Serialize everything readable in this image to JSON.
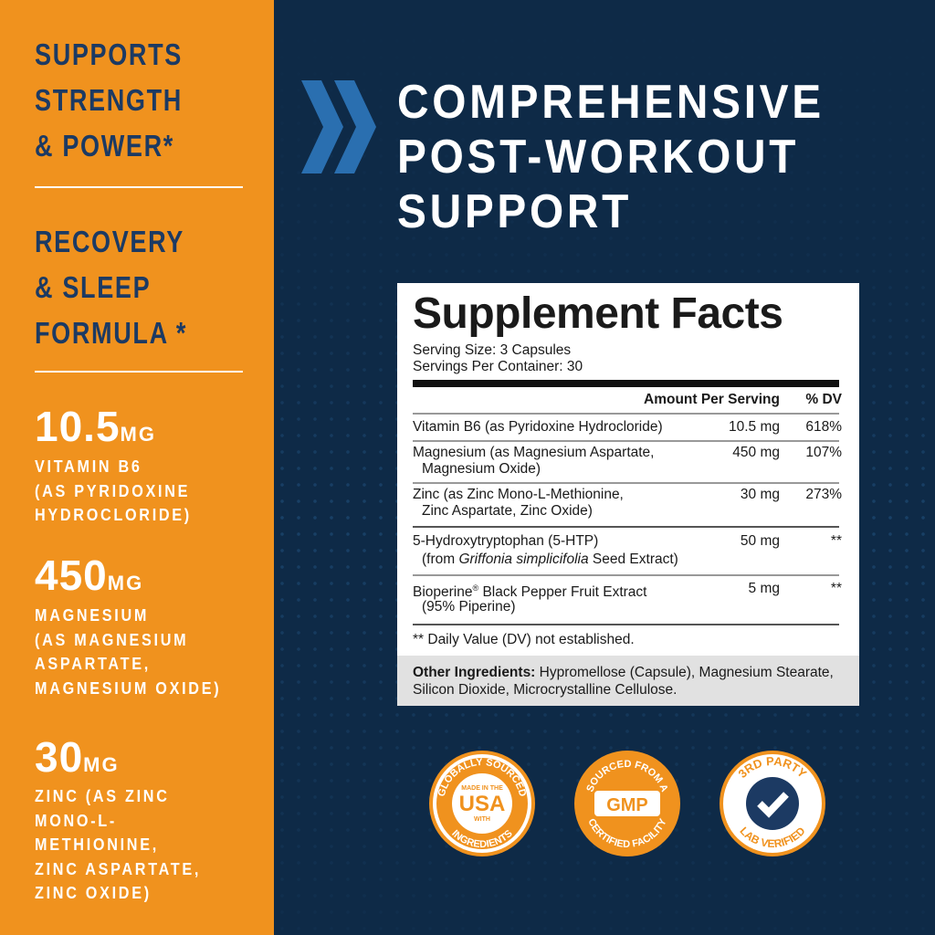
{
  "left": {
    "heading1": [
      "SUPPORTS",
      "STRENGTH",
      "& POWER*"
    ],
    "heading2": [
      "RECOVERY",
      "& SLEEP",
      "FORMULA *"
    ],
    "nutrients": [
      {
        "amount": "10.5",
        "unit": "MG",
        "desc": "VITAMIN B6\n(AS PYRIDOXINE\nHYDROCLORIDE)"
      },
      {
        "amount": "450",
        "unit": "MG",
        "desc": "MAGNESIUM\n(AS MAGNESIUM\nASPARTATE,\nMAGNESIUM OXIDE)"
      },
      {
        "amount": "30",
        "unit": "MG",
        "desc": "ZINC (AS ZINC\nMONO-L-\nMETHIONINE,\nZINC ASPARTATE,\nZINC OXIDE)"
      }
    ]
  },
  "title": [
    "COMPREHENSIVE",
    "POST-WORKOUT",
    "SUPPORT"
  ],
  "facts": {
    "heading": "Supplement Facts",
    "serving_size": "Serving Size: 3 Capsules",
    "servings_per_container": "Servings Per Container: 30",
    "col_amount": "Amount Per Serving",
    "col_dv": "% DV",
    "rows": [
      {
        "name": "Vitamin B6 (as Pyridoxine Hydrocloride)",
        "name2": "",
        "amount": "10.5 mg",
        "dv": "618%"
      },
      {
        "name": "Magnesium (as Magnesium Aspartate,",
        "name2": "Magnesium Oxide)",
        "amount": "450 mg",
        "dv": "107%"
      },
      {
        "name": "Zinc (as Zinc Mono-L-Methionine,",
        "name2": "Zinc Aspartate, Zinc Oxide)",
        "amount": "30 mg",
        "dv": "273%"
      },
      {
        "name": "5-Hydroxytryptophan (5-HTP)",
        "name2a": "(from ",
        "name2i": "Griffonia simplicifolia",
        "name2b": " Seed Extract)",
        "amount": "50 mg",
        "dv": "**"
      },
      {
        "name": "Bioperine",
        "reg": "®",
        "name_rest": " Black Pepper Fruit Extract",
        "name2": "(95% Piperine)",
        "amount": "5 mg",
        "dv": "**"
      }
    ],
    "footnote": "** Daily Value (DV) not established.",
    "other_label": "Other Ingredients:",
    "other_text": " Hypromellose (Capsule), Magnesium Stearate,  Silicon Dioxide,  Microcrystalline Cellulose."
  },
  "badges": [
    {
      "top": "GLOBALLY SOURCED",
      "line1": "MADE IN THE",
      "main": "USA",
      "line2": "WITH",
      "bottom": "INGREDIENTS"
    },
    {
      "top": "SOURCED FROM A",
      "main": "GMP",
      "bottom": "CERTIFIED FACILITY"
    },
    {
      "top": "3RD PARTY",
      "icon": "checkmark-icon",
      "bottom": "LAB VERIFIED"
    }
  ],
  "colors": {
    "orange": "#f0921e",
    "navy": "#0e2a47",
    "accent_blue": "#2a6fb0",
    "text_navy": "#1c3a63"
  }
}
